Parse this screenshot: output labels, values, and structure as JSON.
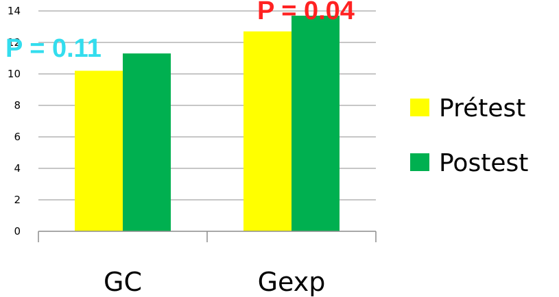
{
  "chart_data": {
    "type": "bar",
    "categories": [
      "GC",
      "Gexp"
    ],
    "series": [
      {
        "name": "Prétest",
        "values": [
          10.2,
          12.7
        ],
        "color": "#ffff00"
      },
      {
        "name": "Postest",
        "values": [
          11.3,
          13.7
        ],
        "color": "#00b050"
      }
    ],
    "title": "",
    "xlabel": "",
    "ylabel": "",
    "ylim": [
      0,
      14
    ],
    "yticks": [
      0,
      2,
      4,
      6,
      8,
      10,
      12,
      14
    ],
    "grid": true,
    "legend_position": "right",
    "annotations": [
      {
        "text": "P = 0.11",
        "category": "GC",
        "color": "#33ddee"
      },
      {
        "text": "P = 0.04",
        "category": "Gexp",
        "color": "#ff2222"
      }
    ]
  }
}
